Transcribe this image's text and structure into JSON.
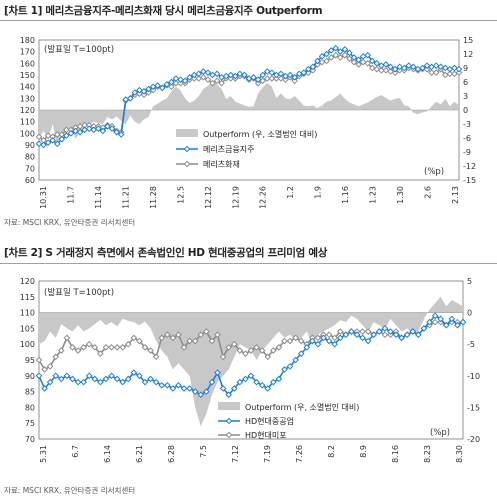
{
  "chart_data": [
    {
      "type": "area",
      "title": "[차트 1] 메리츠금융지주-메리츠화재 당시 메리츠금융지주 Outperform",
      "note": "(발표일 T=100pt)",
      "unit": "(%p)",
      "source": "자료: MSCI KRX, 유안타증권 리서치센터",
      "x_tick_labels": [
        "10.31",
        "11.7",
        "11.14",
        "11.21",
        "11.28",
        "12.5",
        "12.12",
        "12.19",
        "12.26",
        "1.2",
        "1.9",
        "1.16",
        "1.23",
        "1.30",
        "2.6",
        "2.13"
      ],
      "y_left": {
        "ticks": [
          60,
          70,
          80,
          90,
          100,
          110,
          120,
          130,
          140,
          150,
          160,
          170,
          180
        ],
        "range": [
          60,
          180
        ]
      },
      "y_right": {
        "ticks": [
          -15,
          -12,
          -9,
          -6,
          -3,
          0,
          3,
          6,
          9,
          12,
          15
        ],
        "range": [
          -15,
          15
        ]
      },
      "legend": {
        "placement": "bottom-right"
      },
      "series": [
        {
          "name": "Outperform (우, 소멸법인 대비)",
          "axis": "right",
          "style": "area",
          "color": "#c8c8c8",
          "values": [
            -6.0,
            -4.5,
            -6.2,
            -3.0,
            -7.8,
            -4.5,
            -5.2,
            -3.5,
            -6.2,
            -4.8,
            -3.8,
            -3.2,
            -2.5,
            -2.8,
            -3.0,
            -1.5,
            -2.0,
            -1.4,
            -2.3,
            -3.0,
            -1.2,
            -2.5,
            -3.0,
            -2.0,
            -1.5,
            0.8,
            1.4,
            2.0,
            2.5,
            4.0,
            5.0,
            4.2,
            2.5,
            1.5,
            2.0,
            3.0,
            4.5,
            5.2,
            6.2,
            5.5,
            4.5,
            2.3,
            3.0,
            1.8,
            1.4,
            1.0,
            0.7,
            0.8,
            3.6,
            4.8,
            5.8,
            5.0,
            2.6,
            3.6,
            2.5,
            2.3,
            3.0,
            2.0,
            1.0,
            0.8,
            1.0,
            0.4,
            1.0,
            1.8,
            2.0,
            2.8,
            3.5,
            2.4,
            1.6,
            1.2,
            0.8,
            1.2,
            1.6,
            2.2,
            2.8,
            3.2,
            2.6,
            2.0,
            2.4,
            2.6,
            1.0,
            0.8,
            -0.6,
            -0.9,
            -0.5,
            -0.3,
            0.8,
            1.8,
            1.2,
            2.4,
            0.8,
            1.8,
            1.0
          ]
        },
        {
          "name": "메리츠금융지주",
          "axis": "left",
          "style": "line-marker",
          "color": "#1f7fd6",
          "values": [
            91,
            90,
            92,
            94,
            91,
            95,
            98,
            100,
            102,
            101,
            103,
            104,
            103,
            104,
            102,
            106,
            104,
            101,
            99,
            129,
            130,
            135,
            137,
            136,
            138,
            140,
            141,
            139,
            142,
            144,
            147,
            146,
            145,
            148,
            150,
            151,
            153,
            152,
            150,
            151,
            148,
            149,
            150,
            149,
            151,
            150,
            147,
            148,
            146,
            150,
            153,
            152,
            150,
            151,
            149,
            150,
            148,
            151,
            152,
            155,
            157,
            162,
            166,
            168,
            171,
            173,
            170,
            172,
            169,
            165,
            163,
            166,
            167,
            162,
            160,
            158,
            159,
            157,
            155,
            157,
            156,
            158,
            157,
            155,
            156,
            158,
            157,
            158,
            157,
            156,
            155,
            156,
            155
          ]
        },
        {
          "name": "메리츠화재",
          "axis": "left",
          "style": "line-marker",
          "color": "#8c8c8c",
          "values": [
            97,
            94,
            98,
            97,
            99,
            99,
            103,
            103,
            105,
            106,
            107,
            107,
            106,
            106,
            105,
            107,
            106,
            102,
            101,
            128,
            130,
            133,
            134,
            133,
            135,
            137,
            140,
            139,
            141,
            140,
            143,
            143,
            143,
            146,
            147,
            147,
            148,
            146,
            143,
            145,
            143,
            147,
            147,
            147,
            149,
            149,
            146,
            147,
            143,
            145,
            147,
            147,
            147,
            147,
            146,
            148,
            145,
            149,
            151,
            152,
            154,
            159,
            161,
            162,
            165,
            167,
            165,
            167,
            164,
            161,
            159,
            161,
            160,
            156,
            155,
            154,
            154,
            153,
            152,
            154,
            154,
            156,
            155,
            154,
            155,
            155,
            152,
            152,
            155,
            150,
            151,
            151,
            152
          ]
        }
      ]
    },
    {
      "type": "area",
      "title": "[차트 2] S 거래정지 측면에서 존속법인인 HD 현대중공업의 프리미엄 예상",
      "note": "(발표일 T=100pt)",
      "unit": "(%p)",
      "source": "자료: MSCI KRX, 유안타증권 리서치센터",
      "x_tick_labels": [
        "5.31",
        "6.7",
        "6.14",
        "6.21",
        "6.28",
        "7.5",
        "7.12",
        "7.19",
        "7.26",
        "8.2",
        "8.9",
        "8.16",
        "8.23",
        "8.30"
      ],
      "y_left": {
        "ticks": [
          70,
          75,
          80,
          85,
          90,
          95,
          100,
          105,
          110,
          115,
          120
        ],
        "range": [
          70,
          120
        ]
      },
      "y_right": {
        "ticks": [
          -20,
          -15,
          -10,
          -5,
          0,
          5
        ],
        "range": [
          -20,
          5
        ]
      },
      "legend": {
        "placement": "bottom-right"
      },
      "series": [
        {
          "name": "Outperform (우, 소멸법인 대비)",
          "axis": "right",
          "style": "area",
          "color": "#c8c8c8",
          "values": [
            -5.0,
            -4.5,
            -3.0,
            -4.0,
            -1.8,
            -2.5,
            -3.0,
            -2.0,
            -3.0,
            -2.5,
            -1.8,
            -1.2,
            -2.0,
            -1.5,
            -2.2,
            -1.0,
            -1.3,
            -1.5,
            -2.0,
            -1.4,
            -2.5,
            -4.5,
            -6.0,
            -7.0,
            -9.0,
            -8.0,
            -9.0,
            -10.0,
            -15.0,
            -18.0,
            -16.0,
            -13.0,
            -11.0,
            -10.0,
            -9.0,
            -7.0,
            -5.0,
            -5.5,
            -6.0,
            -7.5,
            -6.0,
            -5.0,
            -4.0,
            -3.0,
            -4.0,
            -3.5,
            -4.5,
            -4.0,
            -3.0,
            -5.0,
            -3.5,
            -3.0,
            -2.5,
            -2.0,
            -1.2,
            -1.5,
            -0.5,
            -1.0,
            -2.0,
            -3.0,
            -1.5,
            -2.0,
            -2.5,
            -1.0,
            -2.0,
            -3.0,
            -2.5,
            -3.5,
            -3.0,
            -1.0,
            0.5,
            1.5,
            2.5,
            1.0,
            2.0,
            1.5,
            1.0
          ]
        },
        {
          "name": "HD현대중공업",
          "axis": "left",
          "style": "line-marker",
          "color": "#1f7fd6",
          "values": [
            90,
            86,
            88,
            90,
            89,
            90,
            89,
            88,
            88,
            90,
            89,
            88,
            89,
            90,
            89,
            88,
            89,
            91,
            90,
            88,
            89,
            88,
            87,
            87,
            86,
            87,
            86,
            86,
            85,
            84,
            85,
            88,
            91,
            86,
            84,
            86,
            88,
            89,
            90,
            88,
            87,
            86,
            88,
            89,
            92,
            93,
            95,
            97,
            99,
            101,
            100,
            102,
            101,
            100,
            102,
            103,
            104,
            103,
            102,
            101,
            103,
            104,
            105,
            104,
            103,
            102,
            103,
            104,
            103,
            105,
            107,
            109,
            108,
            106,
            108,
            106,
            107
          ]
        },
        {
          "name": "HD현대미포",
          "axis": "left",
          "style": "line-marker",
          "color": "#8c8c8c",
          "values": [
            95,
            92,
            93,
            96,
            98,
            102,
            99,
            98,
            99,
            100,
            99,
            97,
            99,
            99,
            99,
            99,
            100,
            102,
            101,
            99,
            98,
            96,
            102,
            103,
            102,
            103,
            99,
            101,
            101,
            103,
            104,
            101,
            103,
            96,
            99,
            100,
            98,
            97,
            98,
            99,
            98,
            96,
            98,
            99,
            101,
            101,
            102,
            101,
            100,
            102,
            102,
            103,
            103,
            102,
            104,
            103,
            104,
            104,
            104,
            104,
            103,
            104,
            103,
            103,
            104,
            102,
            103,
            104,
            103,
            105,
            106,
            107,
            107,
            106,
            107,
            107,
            107
          ]
        }
      ]
    }
  ]
}
